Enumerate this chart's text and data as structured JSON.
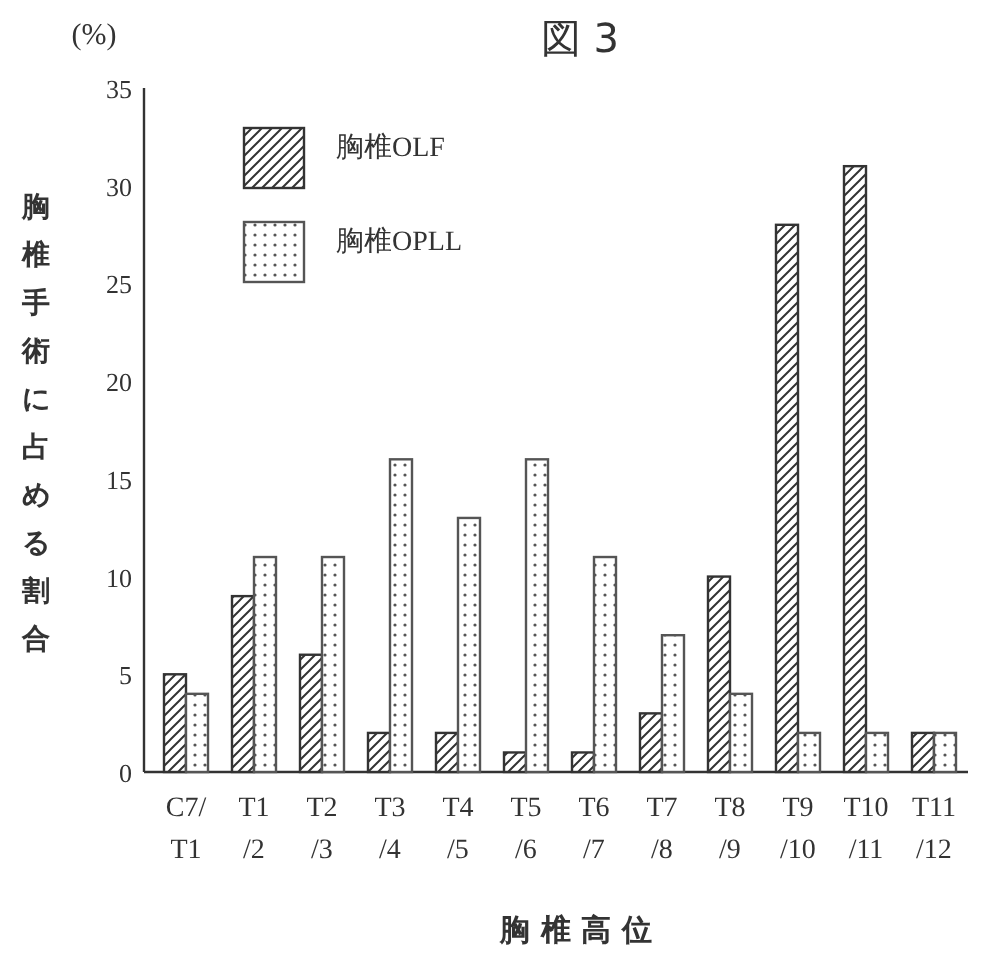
{
  "chart_data": {
    "type": "bar",
    "title": "図 3",
    "xlabel": "胸 椎 高 位",
    "ylabel": "胸椎手術に占める割合",
    "annotations": [
      "(%)"
    ],
    "categories": [
      "C7/\nT1",
      "T1\n/2",
      "T2\n/3",
      "T3\n/4",
      "T4\n/5",
      "T5\n/6",
      "T6\n/7",
      "T7\n/8",
      "T8\n/9",
      "T9\n/10",
      "T10\n/11",
      "T11\n/12"
    ],
    "series": [
      {
        "name": "胸椎OLF",
        "color": "#333333",
        "values": [
          5,
          9,
          6,
          2,
          2,
          1,
          1,
          3,
          10,
          28,
          31,
          2
        ]
      },
      {
        "name": "胸椎OPLL",
        "color": "#555555",
        "values": [
          4,
          11,
          11,
          16,
          13,
          16,
          11,
          7,
          4,
          2,
          2,
          2
        ]
      }
    ],
    "ylim": [
      0,
      35
    ],
    "yticks": [
      0,
      5,
      10,
      15,
      20,
      25,
      30,
      35
    ],
    "legend": "top left"
  }
}
